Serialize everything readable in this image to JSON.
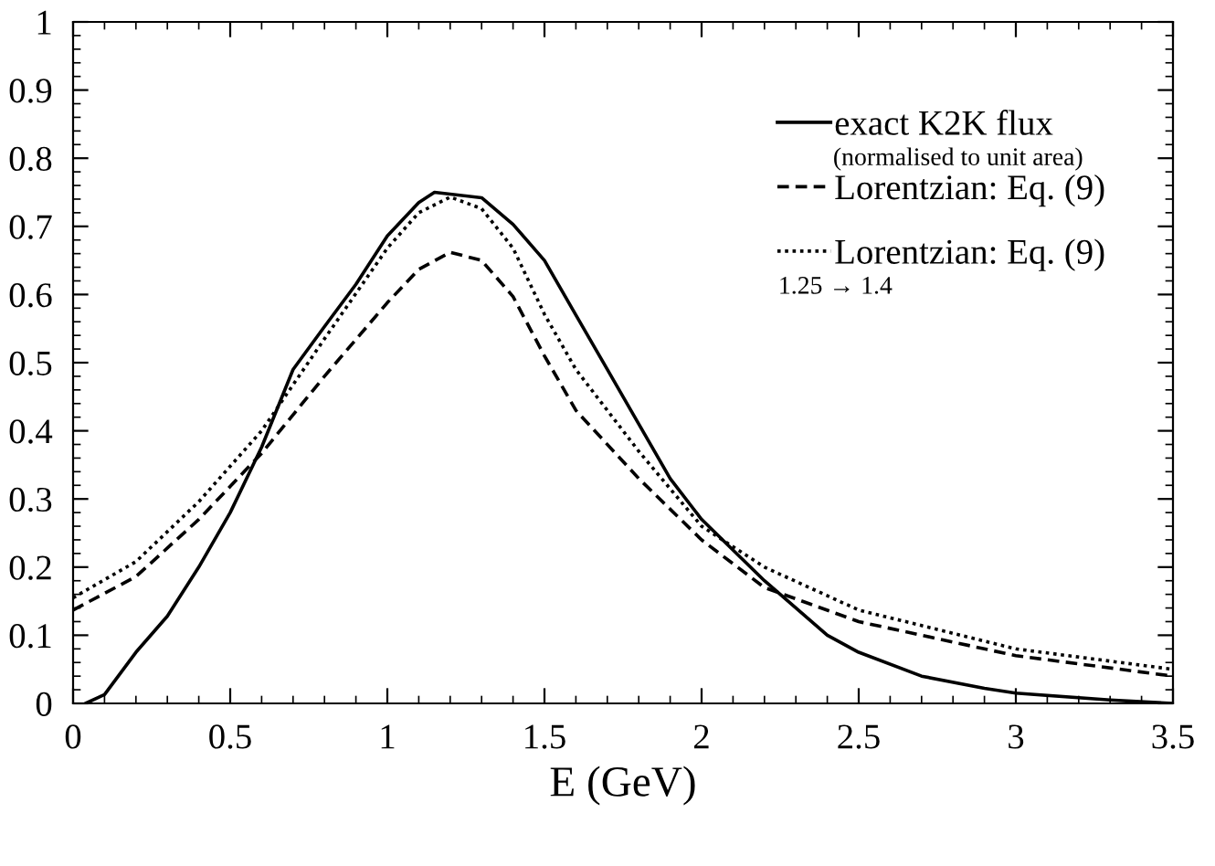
{
  "chart_data": {
    "type": "line",
    "xlabel": "E (GeV)",
    "xlim": [
      0,
      3.5
    ],
    "ylim": [
      0,
      1
    ],
    "xticks": [
      0,
      0.5,
      1,
      1.5,
      2,
      2.5,
      3,
      3.5
    ],
    "yticks": [
      0,
      0.1,
      0.2,
      0.3,
      0.4,
      0.5,
      0.6,
      0.7,
      0.8,
      0.9,
      1
    ],
    "legend": "top right",
    "grid": false,
    "marker": "none",
    "annotations": [
      "(normalised to unit area)",
      "1.25 → 1.4"
    ],
    "series": [
      {
        "name": "exact K2K flux",
        "color": "#000000",
        "line_style": "solid",
        "x": [
          0.04,
          0.1,
          0.2,
          0.3,
          0.4,
          0.5,
          0.6,
          0.7,
          0.8,
          0.9,
          1.0,
          1.1,
          1.15,
          1.3,
          1.4,
          1.5,
          1.6,
          1.7,
          1.8,
          1.9,
          2.0,
          2.2,
          2.4,
          2.5,
          2.7,
          2.9,
          3.0,
          3.3,
          3.5
        ],
        "values": [
          0,
          0.013,
          0.075,
          0.128,
          0.2,
          0.28,
          0.376,
          0.49,
          0.553,
          0.615,
          0.686,
          0.735,
          0.75,
          0.742,
          0.703,
          0.65,
          0.57,
          0.49,
          0.41,
          0.33,
          0.27,
          0.18,
          0.1,
          0.075,
          0.04,
          0.022,
          0.015,
          0.005,
          0
        ]
      },
      {
        "name": "Lorentzian: Eq. (9)",
        "color": "#000000",
        "line_style": "dashed",
        "x": [
          0,
          0.2,
          0.4,
          0.6,
          0.8,
          1.0,
          1.1,
          1.2,
          1.3,
          1.4,
          1.5,
          1.6,
          1.8,
          2.0,
          2.2,
          2.5,
          3.0,
          3.5
        ],
        "values": [
          0.137,
          0.186,
          0.27,
          0.367,
          0.48,
          0.588,
          0.637,
          0.662,
          0.65,
          0.597,
          0.51,
          0.43,
          0.33,
          0.24,
          0.17,
          0.12,
          0.07,
          0.04
        ]
      },
      {
        "name": "Lorentzian: Eq. (9)",
        "color": "#000000",
        "line_style": "dotted",
        "x": [
          0,
          0.2,
          0.4,
          0.6,
          0.8,
          1.0,
          1.1,
          1.2,
          1.3,
          1.4,
          1.5,
          1.6,
          1.8,
          2.0,
          2.2,
          2.5,
          3.0,
          3.5
        ],
        "values": [
          0.155,
          0.208,
          0.296,
          0.4,
          0.535,
          0.668,
          0.72,
          0.743,
          0.726,
          0.668,
          0.571,
          0.49,
          0.37,
          0.26,
          0.2,
          0.137,
          0.08,
          0.05
        ]
      }
    ]
  }
}
